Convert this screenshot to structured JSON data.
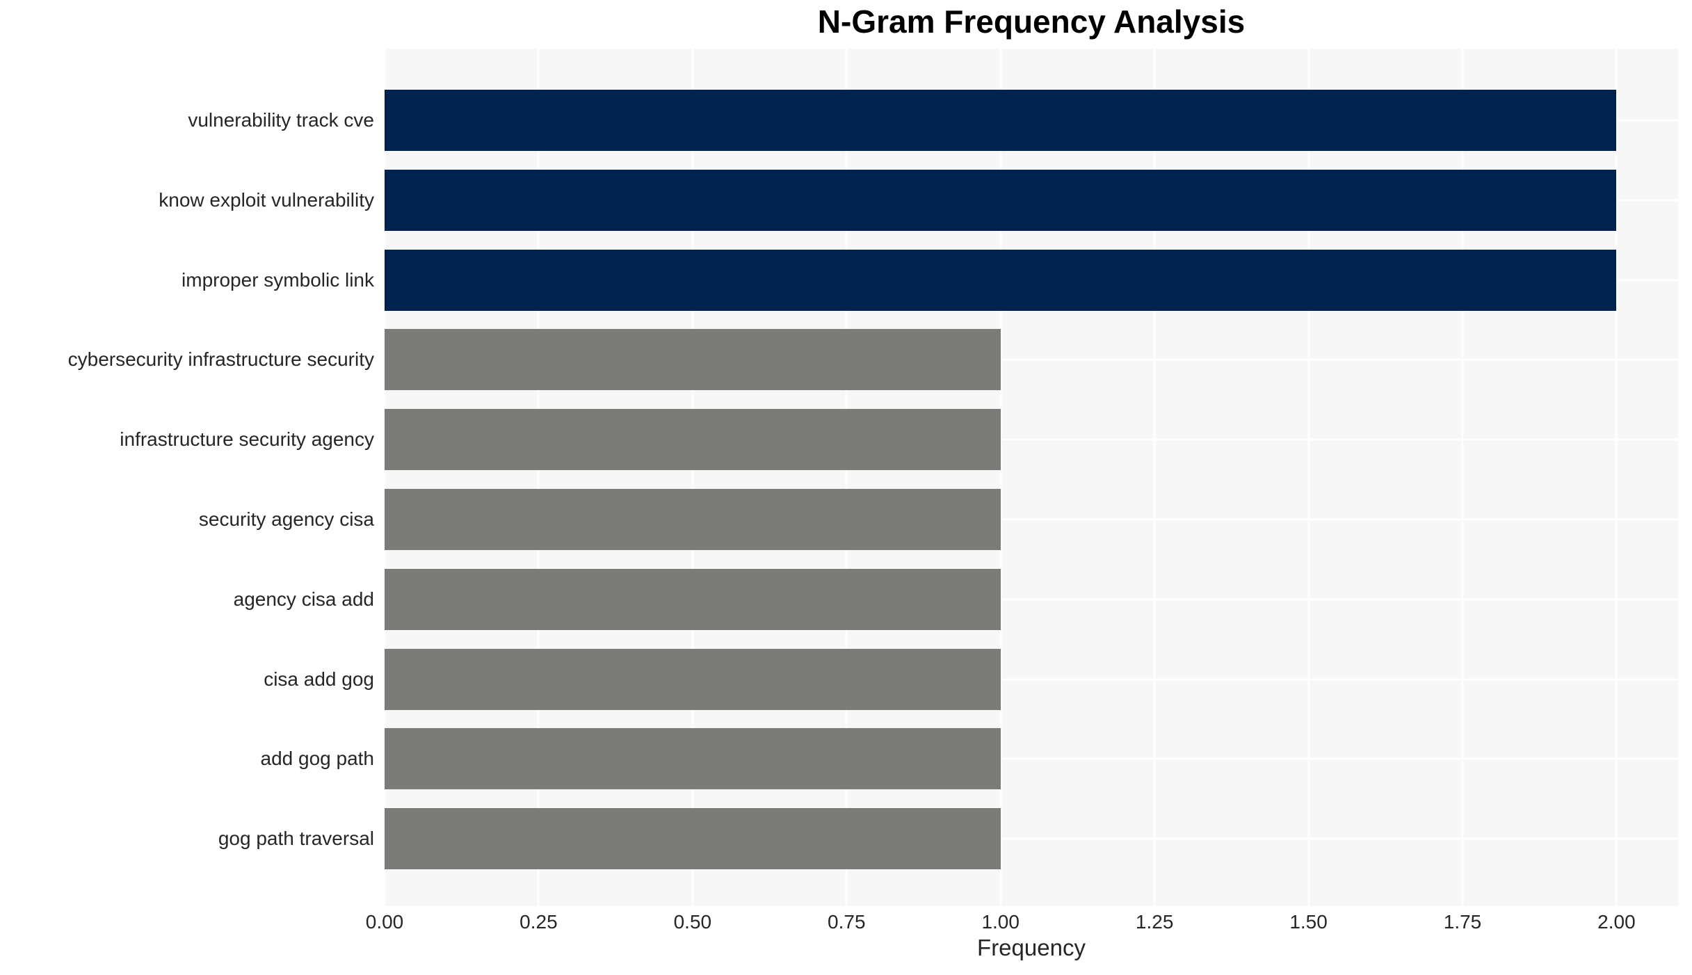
{
  "chart_data": {
    "type": "bar",
    "orientation": "horizontal",
    "title": "N-Gram Frequency Analysis",
    "xlabel": "Frequency",
    "ylabel": "",
    "categories": [
      "vulnerability track cve",
      "know exploit vulnerability",
      "improper symbolic link",
      "cybersecurity infrastructure security",
      "infrastructure security agency",
      "security agency cisa",
      "agency cisa add",
      "cisa add gog",
      "add gog path",
      "gog path traversal"
    ],
    "values": [
      2,
      2,
      2,
      1,
      1,
      1,
      1,
      1,
      1,
      1
    ],
    "xlim": [
      0,
      2.1
    ],
    "xticks": [
      0,
      0.25,
      0.5,
      0.75,
      1.0,
      1.25,
      1.5,
      1.75,
      2.0
    ],
    "xtick_labels": [
      "0.00",
      "0.25",
      "0.50",
      "0.75",
      "1.00",
      "1.25",
      "1.50",
      "1.75",
      "2.00"
    ],
    "grid": true,
    "legend": false,
    "bar_colors": [
      "#00234e",
      "#00234e",
      "#00234e",
      "#7b7b78",
      "#7b7b78",
      "#7b7b78",
      "#7b7b78",
      "#7b7b78",
      "#7b7b78",
      "#7b7b78"
    ],
    "colors": {
      "navy": "#00234e",
      "gray": "#7b7b78",
      "plot_background": "#f7f7f7",
      "gridline": "#ffffff",
      "text": "#262626"
    }
  }
}
